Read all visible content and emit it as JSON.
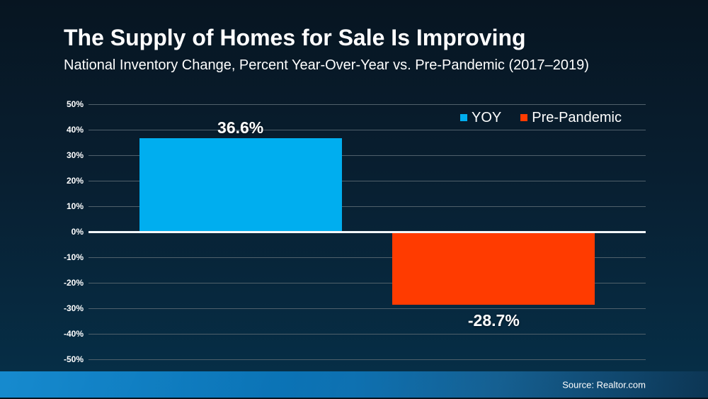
{
  "chart_data": {
    "type": "bar",
    "title": "The Supply of Homes for Sale Is Improving",
    "subtitle": "National Inventory Change, Percent Year-Over-Year vs. Pre-Pandemic (2017–2019)",
    "categories": [
      "YOY",
      "Pre-Pandemic"
    ],
    "series": [
      {
        "name": "YOY",
        "value": 36.6,
        "label": "36.6%",
        "color": "#00AEEF"
      },
      {
        "name": "Pre-Pandemic",
        "value": -28.7,
        "label": "-28.7%",
        "color": "#FF3B00"
      }
    ],
    "ylim": [
      -50,
      50
    ],
    "ytick_step": 10,
    "ytick_labels": [
      "50%",
      "40%",
      "30%",
      "20%",
      "10%",
      "0%",
      "-10%",
      "-20%",
      "-30%",
      "-40%",
      "-50%"
    ],
    "xlabel": "",
    "ylabel": "",
    "grid": true,
    "legend_position": "top-right",
    "value_labels_shown": true
  },
  "footer": {
    "source": "Source: Realtor.com"
  },
  "colors": {
    "background_top": "#071521",
    "background_bottom": "#063049",
    "bar_yoy": "#00AEEF",
    "bar_pre_pandemic": "#FF3B00",
    "zero_line": "#F2F6F9",
    "gridline": "#50606B",
    "footer_left": "#0A84CC",
    "footer_right": "#0D3A5B",
    "text": "#FFFFFF"
  }
}
